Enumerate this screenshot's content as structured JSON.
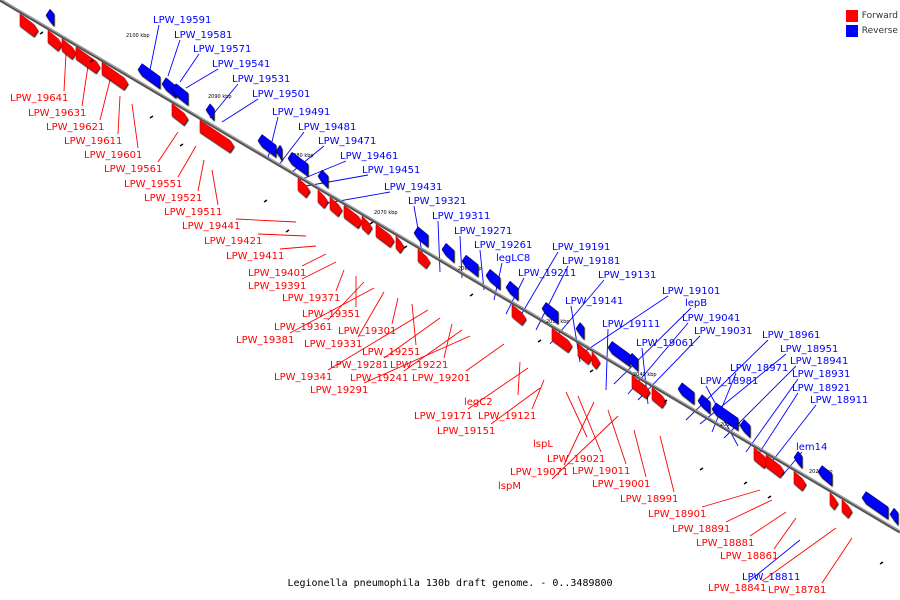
{
  "caption": "Legionella pneumophila 130b draft genome. - 0..3489800",
  "legend": {
    "forward_label": "Forward",
    "reverse_label": "Reverse",
    "forward_color": "#ff0000",
    "reverse_color": "#0000ff"
  },
  "ticks": [
    "2100 kbp",
    "2090 kbp",
    "2080 kbp",
    "2070 kbp",
    "2060 kbp",
    "2050 kbp",
    "2040 kbp",
    "2030 kbp",
    "2020 kbp"
  ],
  "forward_labels": [
    "LPW_19641",
    "LPW_19631",
    "LPW_19621",
    "LPW_19611",
    "LPW_19601",
    "LPW_19561",
    "LPW_19551",
    "LPW_19521",
    "LPW_19511",
    "LPW_19441",
    "LPW_19421",
    "LPW_19411",
    "LPW_19401",
    "LPW_19391",
    "LPW_19371",
    "LPW_19351",
    "LPW_19361",
    "LPW_19381",
    "LPW_19331",
    "LPW_19301",
    "LPW_19251",
    "LPW_19341",
    "LPW_19281",
    "LPW_19221",
    "LPW_19241",
    "LPW_19291",
    "LPW_19201",
    "legC2",
    "LPW_19171",
    "LPW_19121",
    "LPW_19151",
    "lspL",
    "LPW_19021",
    "LPW_19071",
    "LPW_19011",
    "lspM",
    "LPW_19001",
    "LPW_18991",
    "LPW_18901",
    "LPW_18891",
    "LPW_18881",
    "LPW_18861",
    "LPW_18841",
    "LPW_18781"
  ],
  "reverse_labels": [
    "LPW_19591",
    "LPW_19581",
    "LPW_19571",
    "LPW_19541",
    "LPW_19531",
    "LPW_19501",
    "LPW_19491",
    "LPW_19481",
    "LPW_19471",
    "LPW_19461",
    "LPW_19451",
    "LPW_19431",
    "LPW_19321",
    "LPW_19311",
    "LPW_19271",
    "LPW_19261",
    "legLC8",
    "LPW_19211",
    "LPW_19191",
    "LPW_19181",
    "LPW_19131",
    "LPW_19101",
    "LPW_19141",
    "lepB",
    "LPW_19111",
    "LPW_19041",
    "LPW_19031",
    "LPW_19061",
    "LPW_18961",
    "LPW_18951",
    "LPW_18971",
    "LPW_18941",
    "LPW_18981",
    "LPW_18931",
    "LPW_18921",
    "LPW_18911",
    "lem14",
    "LPW_18811"
  ]
}
